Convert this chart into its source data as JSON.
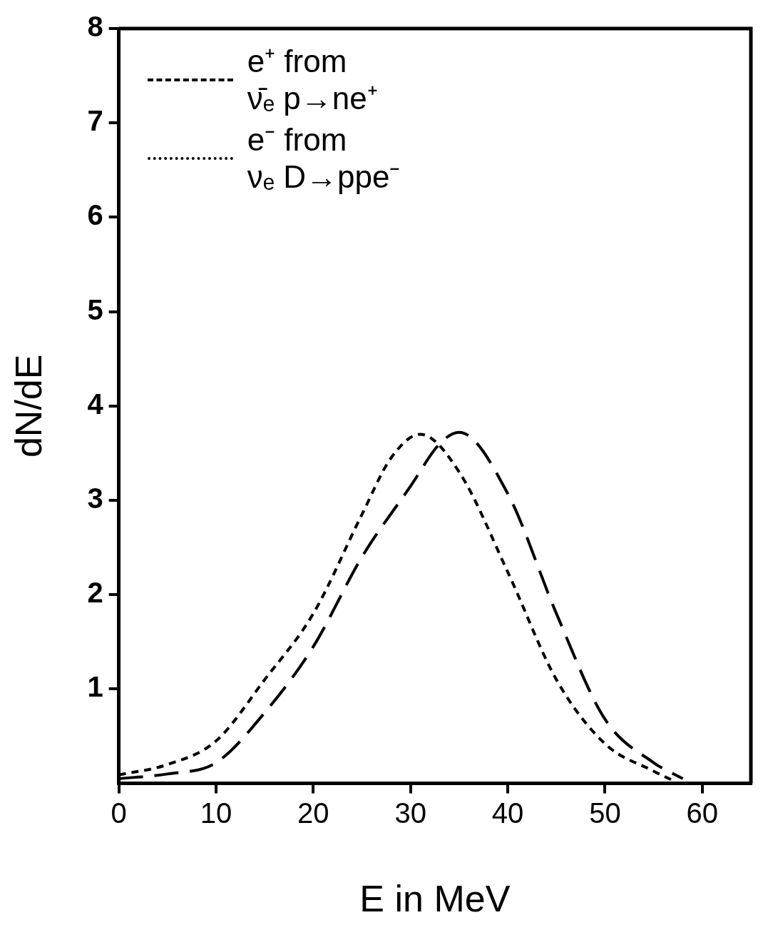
{
  "chart_data": {
    "type": "line",
    "xlabel": "E in MeV",
    "ylabel": "dN/dE",
    "xlim": [
      0,
      65
    ],
    "xticks": [
      0,
      10,
      20,
      30,
      40,
      50,
      60
    ],
    "ylim": [
      0,
      8
    ],
    "yticks": [
      1,
      2,
      3,
      4,
      5,
      6,
      7,
      8
    ],
    "grid": false,
    "legend": "top left",
    "marker": "none",
    "x": [
      0,
      5,
      10,
      15,
      20,
      25,
      30,
      33,
      35,
      40,
      45,
      50,
      55,
      58
    ],
    "series": [
      {
        "name": "e⁺ from\nν̄ₑ p→ne⁺",
        "color": "#000000",
        "line_style": "dashed",
        "values": [
          0.05,
          0.1,
          0.22,
          0.75,
          1.45,
          2.4,
          3.15,
          3.6,
          3.72,
          3.07,
          1.8,
          0.68,
          0.22,
          0.05
        ]
      },
      {
        "name": "e⁻ from\nνₑ D→ppe⁻",
        "color": "#000000",
        "line_style": "dotted",
        "x": [
          0,
          5,
          10,
          15,
          20,
          25,
          28,
          31,
          35,
          40,
          45,
          50,
          55,
          57
        ],
        "values": [
          0.09,
          0.2,
          0.45,
          1.1,
          1.8,
          2.85,
          3.45,
          3.7,
          3.3,
          2.24,
          1.1,
          0.42,
          0.13,
          0.03
        ]
      }
    ]
  }
}
